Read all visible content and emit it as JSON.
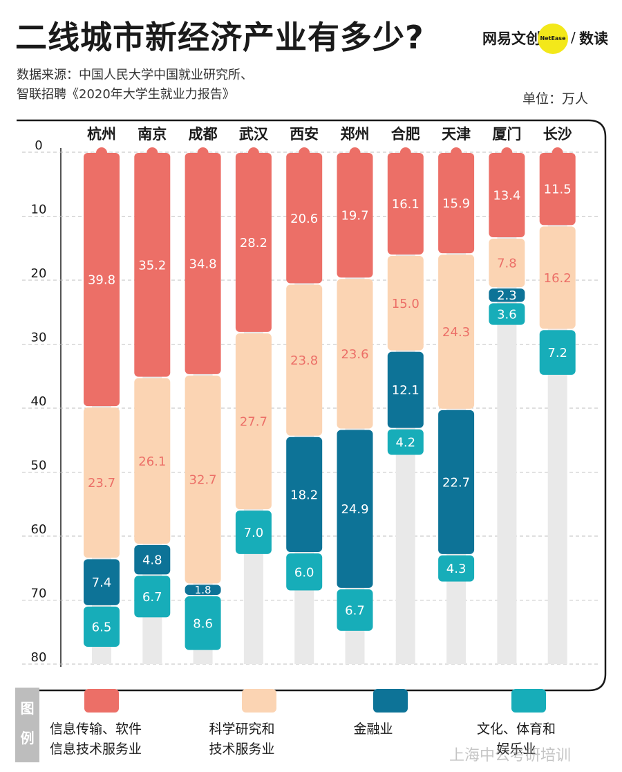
{
  "title": "二线城市新经济产业有多少?",
  "brand": {
    "name": "网易文创",
    "badge": "NetEase",
    "separator": "/",
    "sub": "数读"
  },
  "source": {
    "line1": "数据来源：中国人民大学中国就业研究所、",
    "line2": "智联招聘《2020年大学生就业力报告》"
  },
  "unit": "单位：万人",
  "legend_title": [
    "图",
    "例"
  ],
  "colors": {
    "info": "#ec6f67",
    "sci": "#fbd4b3",
    "fin": "#0d7397",
    "culture": "#17adb9",
    "track": "#e9e9e9",
    "frame": "#1a1a1a",
    "grid": "#bfbfbf"
  },
  "chart_data": {
    "type": "bar",
    "orientation": "vertical-stacked-downward",
    "categories": [
      "杭州",
      "南京",
      "成都",
      "武汉",
      "西安",
      "郑州",
      "合肥",
      "天津",
      "厦门",
      "长沙"
    ],
    "series": [
      {
        "name": "信息传输、软件信息技术服务业",
        "key": "info",
        "values": [
          39.8,
          35.2,
          34.8,
          28.2,
          20.6,
          19.7,
          16.1,
          15.9,
          13.4,
          11.5
        ]
      },
      {
        "name": "科学研究和技术服务业",
        "key": "sci",
        "values": [
          23.7,
          26.1,
          32.7,
          27.7,
          23.8,
          23.6,
          15.0,
          24.3,
          7.8,
          16.2
        ]
      },
      {
        "name": "金融业",
        "key": "fin",
        "values": [
          7.4,
          4.8,
          1.8,
          null,
          18.2,
          24.9,
          12.1,
          22.7,
          2.3,
          null
        ]
      },
      {
        "name": "文化、体育和娱乐业",
        "key": "culture",
        "values": [
          6.5,
          6.7,
          8.6,
          7.0,
          6.0,
          6.7,
          4.2,
          4.3,
          3.6,
          7.2
        ]
      }
    ],
    "ylim": [
      0,
      80
    ],
    "yticks": [
      0,
      10,
      20,
      30,
      40,
      50,
      60,
      70,
      80
    ],
    "grid": true,
    "legend": "bottom"
  }
}
